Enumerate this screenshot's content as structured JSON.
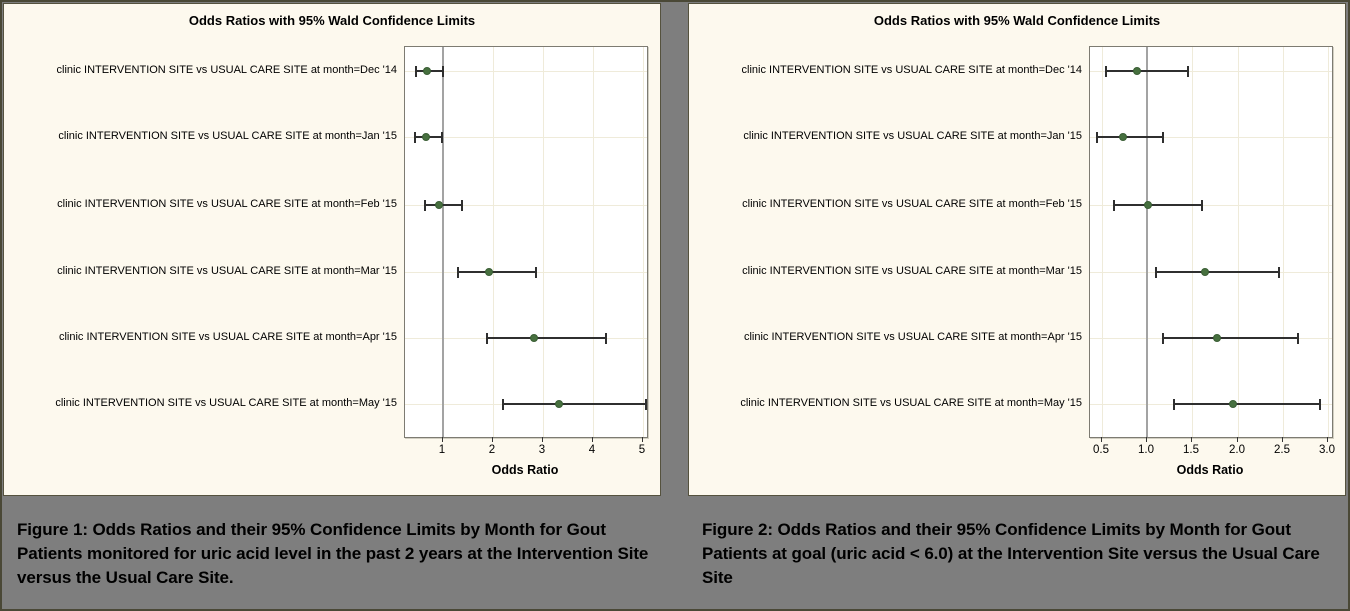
{
  "page": {
    "background_color": "#7E7E7E",
    "outer_border_color": "#4A4836",
    "panel_background_color": "#FDF9EE"
  },
  "colors": {
    "marker_green": "#47703F",
    "marker_edge": "#3A5E34",
    "error_bar": "#2F2F2F",
    "reference_line": "#A3A3A3",
    "gridline": "#EFEBDA",
    "plot_frame": "#7D7B72",
    "text": "#000000"
  },
  "captions": [
    {
      "text": "Figure 1: Odds Ratios and their 95% Confidence Limits by Month for Gout Patients monitored for uric acid level in the past 2 years at the Intervention Site versus the Usual Care Site."
    },
    {
      "text": "Figure 2: Odds Ratios and their 95% Confidence Limits by Month for Gout Patients at goal (uric acid < 6.0) at the Intervention Site versus the Usual Care Site"
    }
  ],
  "chart_data": [
    {
      "type": "scatter",
      "variant": "forest_plot_with_95pct_wald_ci_error_bars",
      "title": "Odds Ratios with 95% Wald Confidence Limits",
      "xlabel": "Odds Ratio",
      "ylabel": "",
      "grid": true,
      "xlim": [
        0.25,
        5.07
      ],
      "xticks": [
        1,
        2,
        3,
        4,
        5
      ],
      "xtick_labels": [
        "1",
        "2",
        "3",
        "4",
        "5"
      ],
      "reference_line_x": 1.0,
      "rows": [
        {
          "label": "clinic INTERVENTION SITE vs USUAL CARE SITE at month=Dec '14",
          "odds_ratio": 0.68,
          "ci_lower": 0.46,
          "ci_upper": 1.0
        },
        {
          "label": "clinic INTERVENTION SITE vs USUAL CARE SITE at month=Jan '15",
          "odds_ratio": 0.66,
          "ci_lower": 0.44,
          "ci_upper": 0.99
        },
        {
          "label": "clinic INTERVENTION SITE vs USUAL CARE SITE at month=Feb '15",
          "odds_ratio": 0.93,
          "ci_lower": 0.64,
          "ci_upper": 1.38
        },
        {
          "label": "clinic INTERVENTION SITE vs USUAL CARE SITE at month=Mar '15",
          "odds_ratio": 1.92,
          "ci_lower": 1.3,
          "ci_upper": 2.85
        },
        {
          "label": "clinic INTERVENTION SITE vs USUAL CARE SITE at month=Apr '15",
          "odds_ratio": 2.82,
          "ci_lower": 1.89,
          "ci_upper": 4.25
        },
        {
          "label": "clinic INTERVENTION SITE vs USUAL CARE SITE at month=May '15",
          "odds_ratio": 3.32,
          "ci_lower": 2.2,
          "ci_upper": 5.05
        }
      ]
    },
    {
      "type": "scatter",
      "variant": "forest_plot_with_95pct_wald_ci_error_bars",
      "title": "Odds Ratios with 95% Wald Confidence Limits",
      "xlabel": "Odds Ratio",
      "ylabel": "",
      "grid": true,
      "xlim": [
        0.37,
        3.04
      ],
      "xticks": [
        0.5,
        1.0,
        1.5,
        2.0,
        2.5,
        3.0
      ],
      "xtick_labels": [
        "0.5",
        "1.0",
        "1.5",
        "2.0",
        "2.5",
        "3.0"
      ],
      "reference_line_x": 1.0,
      "rows": [
        {
          "label": "clinic INTERVENTION SITE vs USUAL CARE SITE at month=Dec '14",
          "odds_ratio": 0.89,
          "ci_lower": 0.55,
          "ci_upper": 1.45
        },
        {
          "label": "clinic INTERVENTION SITE vs USUAL CARE SITE at month=Jan '15",
          "odds_ratio": 0.73,
          "ci_lower": 0.45,
          "ci_upper": 1.18
        },
        {
          "label": "clinic INTERVENTION SITE vs USUAL CARE SITE at month=Feb '15",
          "odds_ratio": 1.01,
          "ci_lower": 0.64,
          "ci_upper": 1.61
        },
        {
          "label": "clinic INTERVENTION SITE vs USUAL CARE SITE at month=Mar '15",
          "odds_ratio": 1.64,
          "ci_lower": 1.1,
          "ci_upper": 2.46
        },
        {
          "label": "clinic INTERVENTION SITE vs USUAL CARE SITE at month=Apr '15",
          "odds_ratio": 1.77,
          "ci_lower": 1.18,
          "ci_upper": 2.66
        },
        {
          "label": "clinic INTERVENTION SITE vs USUAL CARE SITE at month=May '15",
          "odds_ratio": 1.95,
          "ci_lower": 1.3,
          "ci_upper": 2.91
        }
      ]
    }
  ]
}
